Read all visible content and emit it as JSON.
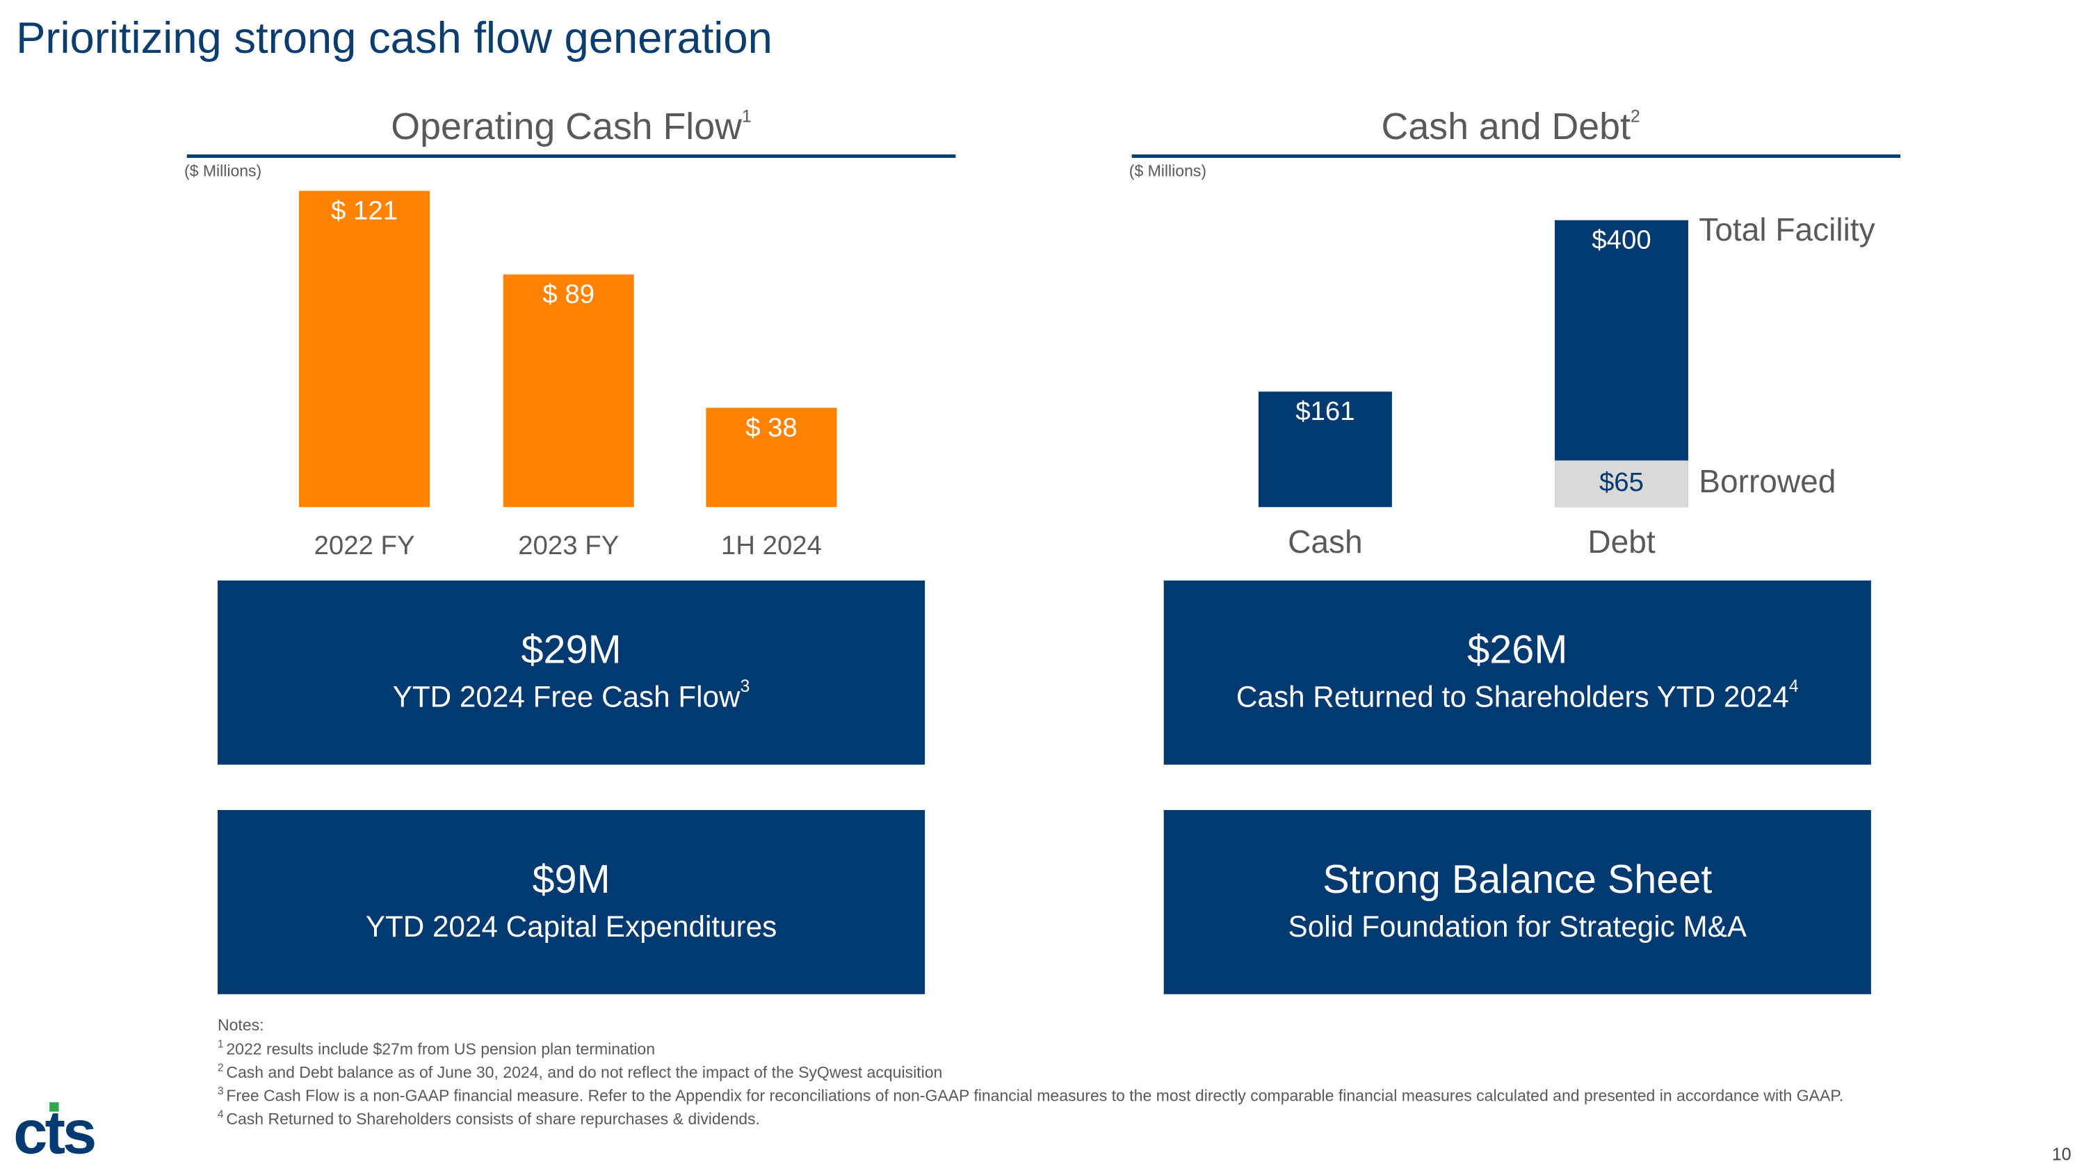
{
  "title": "Prioritizing strong cash flow generation",
  "chart_data": [
    {
      "type": "bar",
      "title": "Operating Cash Flow",
      "title_note": "1",
      "unit_label": "($ Millions)",
      "categories": [
        "2022 FY",
        "2023 FY",
        "1H 2024"
      ],
      "values": [
        121,
        89,
        38
      ],
      "value_labels": [
        "$ 121",
        "$ 89",
        "$ 38"
      ],
      "color": "#ff8200"
    },
    {
      "type": "bar",
      "barmode": "overlay",
      "title": "Cash and Debt",
      "title_note": "2",
      "unit_label": "($ Millions)",
      "categories": [
        "Cash",
        "Debt"
      ],
      "series": [
        {
          "name": "Total Facility",
          "color": "#003a70",
          "values": [
            161,
            400
          ],
          "value_labels": [
            "$161",
            "$400"
          ]
        },
        {
          "name": "Borrowed",
          "color": "#d9d9d9",
          "values": [
            null,
            65
          ],
          "value_labels": [
            null,
            "$65"
          ]
        }
      ]
    }
  ],
  "boxes": [
    {
      "headline": "$29M",
      "text": "YTD 2024 Free Cash Flow",
      "note": "3"
    },
    {
      "headline": "$26M",
      "text": "Cash Returned to Shareholders YTD 2024",
      "note": "4"
    },
    {
      "headline": "$9M",
      "text": "YTD 2024 Capital Expenditures"
    },
    {
      "headline": "Strong Balance Sheet",
      "text": "Solid Foundation for Strategic M&A"
    }
  ],
  "notes": {
    "heading": "Notes:",
    "items": [
      {
        "marker": "1",
        "text": "2022 results include $27m from US pension plan termination"
      },
      {
        "marker": "2",
        "text": "Cash and Debt balance as of June 30, 2024, and do not reflect the impact of the SyQwest acquisition"
      },
      {
        "marker": "3",
        "text": "Free Cash Flow is a non-GAAP financial measure. Refer to the Appendix for reconciliations of non-GAAP financial measures to the most directly comparable financial measures calculated and presented in accordance with GAAP."
      },
      {
        "marker": "4",
        "text": "Cash Returned to Shareholders consists of share repurchases & dividends."
      }
    ]
  },
  "logo": "cts",
  "page_number": "10"
}
